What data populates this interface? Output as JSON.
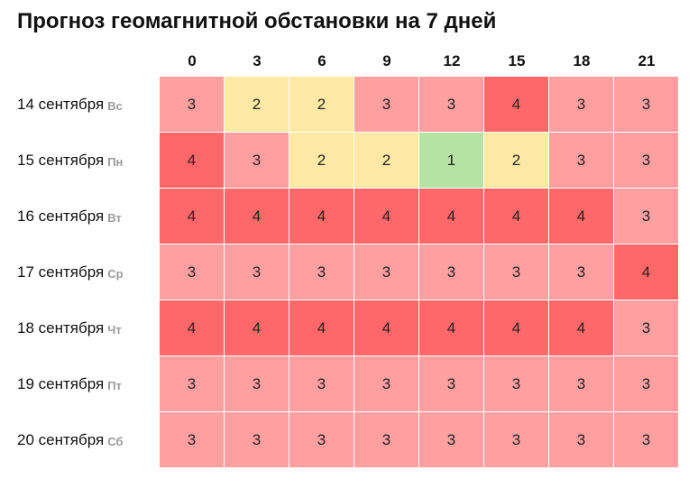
{
  "chart_data": {
    "type": "heatmap",
    "title": "Прогноз геомагнитной обстановки на 7 дней",
    "hours": [
      "0",
      "3",
      "6",
      "9",
      "12",
      "15",
      "18",
      "21"
    ],
    "rows": [
      {
        "date": "14 сентября",
        "weekday": "Вс",
        "values": [
          3,
          2,
          2,
          3,
          3,
          4,
          3,
          3
        ]
      },
      {
        "date": "15 сентября",
        "weekday": "Пн",
        "values": [
          4,
          3,
          2,
          2,
          1,
          2,
          3,
          3
        ]
      },
      {
        "date": "16 сентября",
        "weekday": "Вт",
        "values": [
          4,
          4,
          4,
          4,
          4,
          4,
          4,
          3
        ]
      },
      {
        "date": "17 сентября",
        "weekday": "Ср",
        "values": [
          3,
          3,
          3,
          3,
          3,
          3,
          3,
          4
        ]
      },
      {
        "date": "18 сентября",
        "weekday": "Чт",
        "values": [
          4,
          4,
          4,
          4,
          4,
          4,
          4,
          3
        ]
      },
      {
        "date": "19 сентября",
        "weekday": "Пт",
        "values": [
          3,
          3,
          3,
          3,
          3,
          3,
          3,
          3
        ]
      },
      {
        "date": "20 сентября",
        "weekday": "Сб",
        "values": [
          3,
          3,
          3,
          3,
          3,
          3,
          3,
          3
        ]
      }
    ],
    "colors": {
      "1": "#b4e3a4",
      "2": "#fde8a4",
      "3": "#ff9f9f",
      "4": "#ff6868"
    }
  }
}
